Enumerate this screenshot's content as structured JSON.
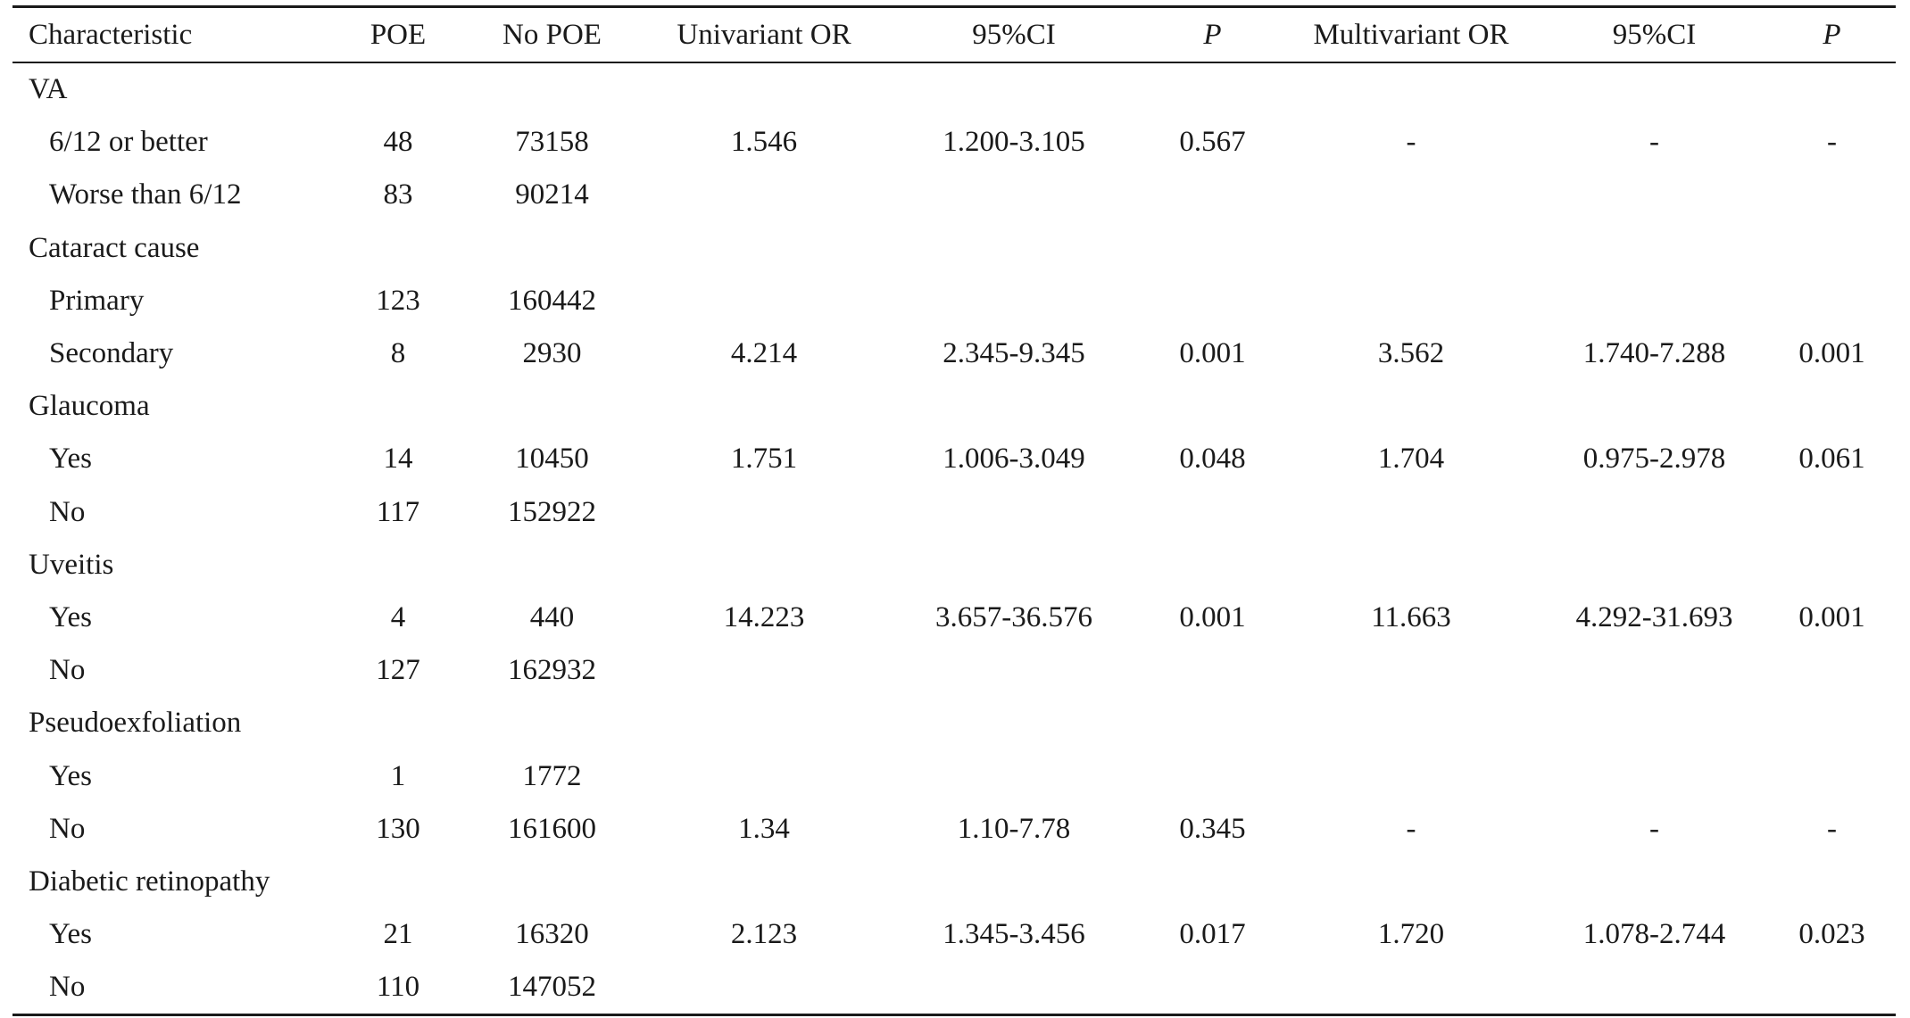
{
  "table": {
    "headers": [
      "Characteristic",
      "POE",
      "No POE",
      "Univariant OR",
      "95%CI",
      "P",
      "Multivariant OR",
      "95%CI",
      "P"
    ],
    "rows": [
      {
        "type": "group",
        "label": "VA"
      },
      {
        "type": "sub",
        "cells": [
          "6/12 or better",
          "48",
          "73158",
          "1.546",
          "1.200-3.105",
          "0.567",
          "-",
          "-",
          "-"
        ]
      },
      {
        "type": "sub",
        "cells": [
          "Worse than 6/12",
          "83",
          "90214",
          "",
          "",
          "",
          "",
          "",
          ""
        ]
      },
      {
        "type": "group",
        "label": "Cataract cause"
      },
      {
        "type": "sub",
        "cells": [
          "Primary",
          "123",
          "160442",
          "",
          "",
          "",
          "",
          "",
          ""
        ]
      },
      {
        "type": "sub",
        "cells": [
          "Secondary",
          "8",
          "2930",
          "4.214",
          "2.345-9.345",
          "0.001",
          "3.562",
          "1.740-7.288",
          "0.001"
        ]
      },
      {
        "type": "group",
        "label": "Glaucoma"
      },
      {
        "type": "sub",
        "cells": [
          "Yes",
          "14",
          "10450",
          "1.751",
          "1.006-3.049",
          "0.048",
          "1.704",
          "0.975-2.978",
          "0.061"
        ]
      },
      {
        "type": "sub",
        "cells": [
          "No",
          "117",
          "152922",
          "",
          "",
          "",
          "",
          "",
          ""
        ]
      },
      {
        "type": "group",
        "label": "Uveitis"
      },
      {
        "type": "sub",
        "cells": [
          "Yes",
          "4",
          "440",
          "14.223",
          "3.657-36.576",
          "0.001",
          "11.663",
          "4.292-31.693",
          "0.001"
        ]
      },
      {
        "type": "sub",
        "cells": [
          "No",
          "127",
          "162932",
          "",
          "",
          "",
          "",
          "",
          ""
        ]
      },
      {
        "type": "group",
        "label": "Pseudoexfoliation"
      },
      {
        "type": "sub",
        "cells": [
          "Yes",
          "1",
          "1772",
          "",
          "",
          "",
          "",
          "",
          ""
        ]
      },
      {
        "type": "sub",
        "cells": [
          "No",
          "130",
          "161600",
          "1.34",
          "1.10-7.78",
          "0.345",
          "-",
          "-",
          "-"
        ]
      },
      {
        "type": "group",
        "label": "Diabetic retinopathy"
      },
      {
        "type": "sub",
        "cells": [
          "Yes",
          "21",
          "16320",
          "2.123",
          "1.345-3.456",
          "0.017",
          "1.720",
          "1.078-2.744",
          "0.023"
        ]
      },
      {
        "type": "sub",
        "cells": [
          "No",
          "110",
          "147052",
          "",
          "",
          "",
          "",
          "",
          ""
        ]
      }
    ]
  }
}
